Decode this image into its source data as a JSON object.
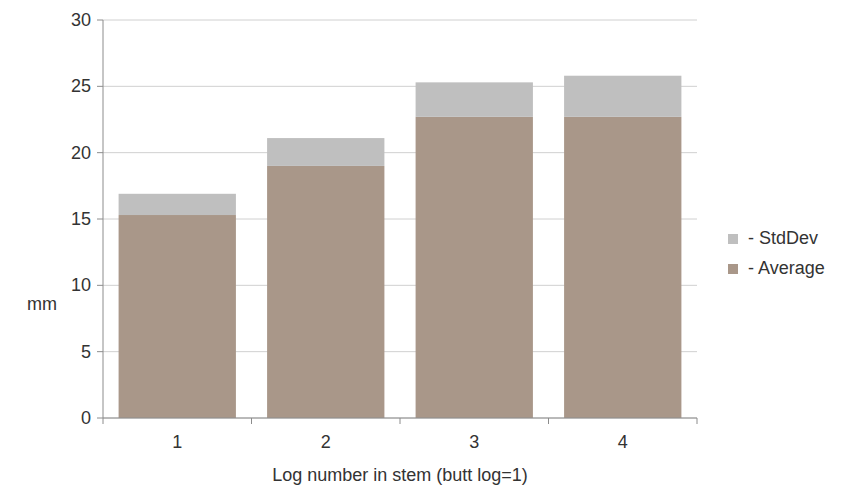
{
  "chart_data": {
    "type": "bar",
    "stacked": true,
    "y_label": "mm",
    "x_label": "Log number in stem (butt log=1)",
    "categories": [
      "1",
      "2",
      "3",
      "4"
    ],
    "series": [
      {
        "name": "- Average",
        "color": "#a99789",
        "values": [
          15.3,
          19.0,
          22.7,
          22.7
        ]
      },
      {
        "name": "- StdDev",
        "color": "#bfbfbf",
        "values": [
          1.6,
          2.1,
          2.6,
          3.1
        ]
      }
    ],
    "ylim": [
      0,
      30
    ],
    "yticks": [
      0,
      5,
      10,
      15,
      20,
      25,
      30
    ],
    "grid": true,
    "legend": "right"
  }
}
